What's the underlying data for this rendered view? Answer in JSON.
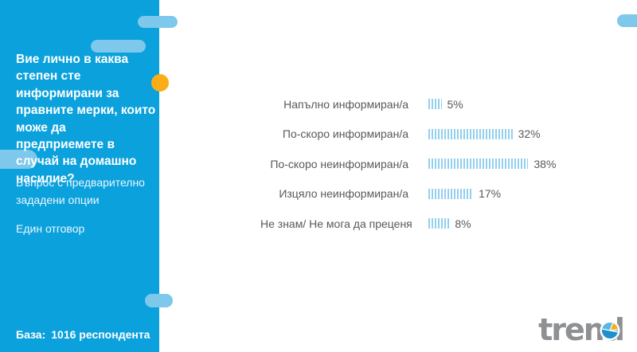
{
  "theme": {
    "sidebar_blue": "#0BA1DC",
    "pill_light_blue": "#7DC8EB",
    "accent_orange": "#FBAD18",
    "bar_stripe_blue": "#93CFEE",
    "text_dark": "#58595B",
    "logo_gray": "#8E9093",
    "background": "#FFFFFF"
  },
  "sidebar": {
    "question": "Вие лично в каква степен сте информирани за правните мерки, които може да предприемете в случай на домашно насилие?",
    "note": "Въпрос с предварително зададени опции",
    "answer_type": "Един отговор",
    "base_label": "База:",
    "base_value": "1016 респондента"
  },
  "chart_data": {
    "type": "bar",
    "orientation": "horizontal",
    "title": "",
    "xlabel": "",
    "ylabel": "",
    "axis_visible": false,
    "legend": "none",
    "bar_style": "striped-vertical-lines",
    "value_suffix": "%",
    "categories": [
      "Напълно информиран/а",
      "По-скоро информиран/а",
      "По-скоро неинформиран/а",
      "Изцяло неинформиран/а",
      "Не знам/ Не мога да преценя"
    ],
    "values": [
      5,
      32,
      38,
      17,
      8
    ]
  },
  "logo": {
    "text": "trend"
  }
}
